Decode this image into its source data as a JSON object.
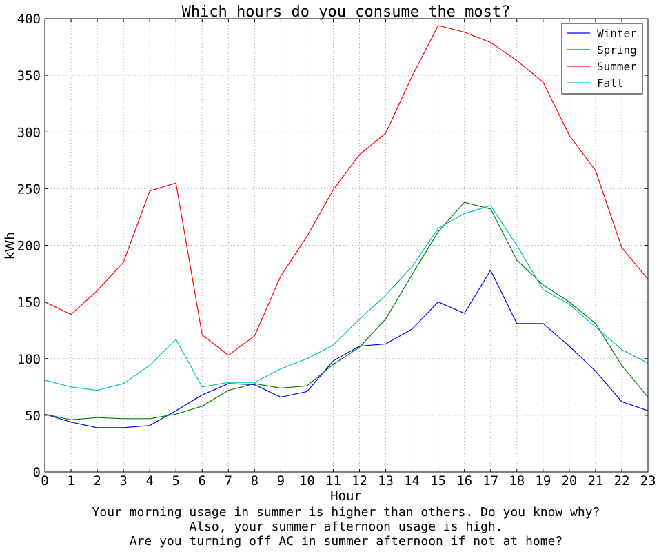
{
  "chart_data": {
    "type": "line",
    "title": "Which hours do you consume the most?",
    "xlabel": "Hour",
    "ylabel": "kWh",
    "xlim": [
      0,
      23
    ],
    "ylim": [
      0,
      400
    ],
    "x": [
      0,
      1,
      2,
      3,
      4,
      5,
      6,
      7,
      8,
      9,
      10,
      11,
      12,
      13,
      14,
      15,
      16,
      17,
      18,
      19,
      20,
      21,
      22,
      23
    ],
    "x_ticks": [
      "0",
      "1",
      "2",
      "3",
      "4",
      "5",
      "6",
      "7",
      "8",
      "9",
      "10",
      "11",
      "12",
      "13",
      "14",
      "15",
      "16",
      "17",
      "18",
      "19",
      "20",
      "21",
      "22",
      "23"
    ],
    "y_ticks": [
      "0",
      "50",
      "100",
      "150",
      "200",
      "250",
      "300",
      "350",
      "400"
    ],
    "y_tick_values": [
      0,
      50,
      100,
      150,
      200,
      250,
      300,
      350,
      400
    ],
    "grid": true,
    "legend_position": "top-right",
    "series": [
      {
        "name": "Winter",
        "color": "#0000ff",
        "values": [
          51,
          44,
          39,
          39,
          41,
          54,
          68,
          78,
          77,
          66,
          71,
          98,
          111,
          113,
          126,
          150,
          140,
          178,
          131,
          131,
          111,
          89,
          62,
          54
        ]
      },
      {
        "name": "Spring",
        "color": "#008000",
        "values": [
          51,
          46,
          48,
          47,
          47,
          51,
          58,
          72,
          78,
          74,
          76,
          95,
          110,
          135,
          174,
          212,
          238,
          232,
          187,
          165,
          150,
          131,
          94,
          66
        ]
      },
      {
        "name": "Summer",
        "color": "#ff0000",
        "values": [
          150,
          139,
          160,
          185,
          248,
          255,
          121,
          103,
          120,
          173,
          208,
          249,
          280,
          299,
          349,
          394,
          388,
          379,
          363,
          344,
          297,
          266,
          198,
          170
        ]
      },
      {
        "name": "Fall",
        "color": "#00bfbf",
        "values": [
          81,
          75,
          72,
          78,
          94,
          117,
          75,
          79,
          79,
          91,
          100,
          112,
          135,
          156,
          181,
          215,
          228,
          235,
          200,
          161,
          148,
          128,
          108,
          96
        ]
      }
    ],
    "annotations": [
      "Your morning usage in summer is higher than others. Do you know why?",
      "Also, your summer afternoon usage is high.",
      "Are you turning off AC in summer afternoon if not at home?"
    ]
  }
}
